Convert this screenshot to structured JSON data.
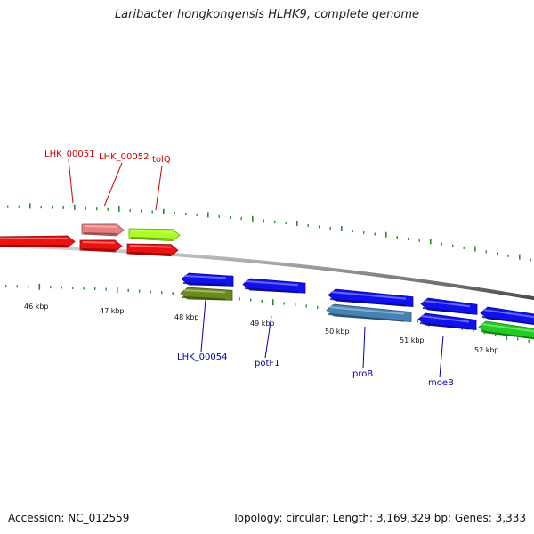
{
  "title": "Laribacter hongkongensis HLHK9, complete genome",
  "footer": {
    "accession": "Accession: NC_012559",
    "summary": "Topology: circular; Length: 3,169,329 bp; Genes: 3,333"
  },
  "colors": {
    "forward_label": "#cc0000",
    "reverse_label": "#0000aa",
    "backbone": "#8a8a8a",
    "tick": "#2a8a2a"
  },
  "scale": {
    "unit": "kbp",
    "labels": [
      {
        "text": "46 kbp",
        "kbp": 46
      },
      {
        "text": "47 kbp",
        "kbp": 47
      },
      {
        "text": "48 kbp",
        "kbp": 48
      },
      {
        "text": "49 kbp",
        "kbp": 49
      },
      {
        "text": "50 kbp",
        "kbp": 50
      },
      {
        "text": "51 kbp",
        "kbp": 51
      },
      {
        "text": "52 kbp",
        "kbp": 52
      }
    ]
  },
  "genes": [
    {
      "label": "",
      "strand": "+",
      "color": "#ee1111"
    },
    {
      "label": "LHK_00051",
      "strand": "+",
      "color": "#ee1111"
    },
    {
      "label": "LHK_00052",
      "strand": "+",
      "color": "#e98080"
    },
    {
      "label": "tolQ",
      "strand": "+",
      "color": "#ee1111"
    },
    {
      "label": "",
      "strand": "+",
      "color": "#aaff22"
    },
    {
      "label": "",
      "strand": "-",
      "color": "#1111ee"
    },
    {
      "label": "LHK_00054",
      "strand": "-",
      "color": "#6b8a1e"
    },
    {
      "label": "potF1",
      "strand": "-",
      "color": "#1111ee"
    },
    {
      "label": "",
      "strand": "-",
      "color": "#1111ee"
    },
    {
      "label": "proB",
      "strand": "-",
      "color": "#4682b4"
    },
    {
      "label": "",
      "strand": "-",
      "color": "#1111ee"
    },
    {
      "label": "moeB",
      "strand": "-",
      "color": "#1111ee"
    },
    {
      "label": "",
      "strand": "-",
      "color": "#1111ee"
    },
    {
      "label": "",
      "strand": "-",
      "color": "#22cc22"
    }
  ]
}
